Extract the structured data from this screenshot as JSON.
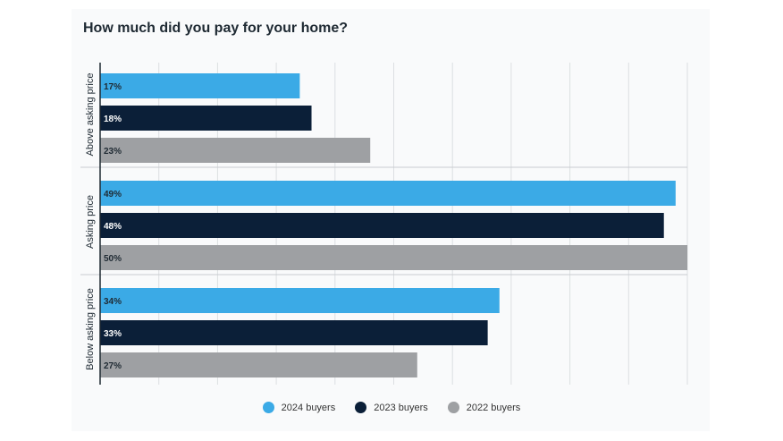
{
  "chart_data": {
    "type": "bar",
    "orientation": "horizontal",
    "title": "How much did you pay for your home?",
    "categories": [
      "Above asking price",
      "Asking price",
      "Below asking price"
    ],
    "series": [
      {
        "name": "2024 buyers",
        "values": [
          17,
          49,
          34
        ],
        "labels": [
          "17%",
          "49%",
          "34%"
        ],
        "color": "#3baae6"
      },
      {
        "name": "2023 buyers",
        "values": [
          18,
          48,
          33
        ],
        "labels": [
          "18%",
          "48%",
          "33%"
        ],
        "color": "#0b1f38"
      },
      {
        "name": "2022 buyers",
        "values": [
          23,
          50,
          27
        ],
        "labels": [
          "23%",
          "50%",
          "27%"
        ],
        "color": "#9ea0a3"
      }
    ],
    "xlim": [
      0,
      50
    ],
    "grid": true,
    "legend_position": "bottom"
  }
}
